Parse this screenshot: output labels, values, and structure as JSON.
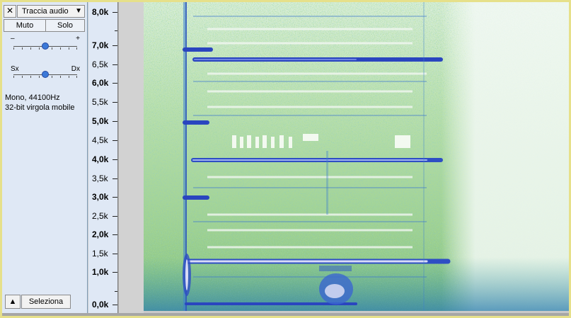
{
  "track": {
    "close_glyph": "✕",
    "name": "Traccia audio",
    "dropdown_glyph": "▼",
    "mute_label": "Muto",
    "solo_label": "Solo",
    "gain": {
      "minus": "–",
      "plus": "+",
      "level": 0.5
    },
    "pan": {
      "left": "Sx",
      "right": "Dx",
      "level": 0.5
    },
    "format_line1": "Mono, 44100Hz",
    "format_line2": "32-bit virgola mobile",
    "collapse_glyph": "▲",
    "select_label": "Seleziona"
  },
  "ruler": {
    "labels": [
      "8,0k",
      "7,0k",
      "6,5k",
      "6,0k",
      "5,5k",
      "5,0k",
      "4,5k",
      "4,0k",
      "3,5k",
      "3,0k",
      "2,5k",
      "2,0k",
      "1,5k",
      "1,0k",
      "0,0k"
    ],
    "bold": [
      "8,0k",
      "7,0k",
      "6,0k",
      "5,0k",
      "4,0k",
      "3,0k",
      "2,0k",
      "1,0k",
      "0,0k"
    ]
  },
  "colors": {
    "track_panel": "#dfe8f5",
    "spectrogram_low": "#e9f4ef",
    "spectrogram_mid": "#6fbf50",
    "spectrogram_high": "#2d5fd0",
    "spectrogram_peak": "#d6d9f5",
    "border_accent": "#e6e08a"
  }
}
